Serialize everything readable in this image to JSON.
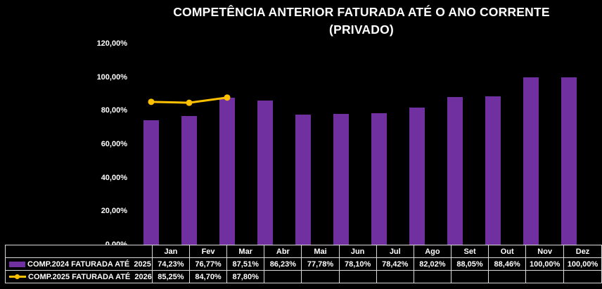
{
  "title": {
    "line1": "COMPETÊNCIA ANTERIOR FATURADA ATÉ O ANO CORRENTE",
    "line2": "(PRIVADO)"
  },
  "colors": {
    "background": "#000000",
    "bar": "#7030A0",
    "line": "#FFC000",
    "text": "#FFFFFF",
    "table_border": "#D9D9D9"
  },
  "chart_data": {
    "type": "bar",
    "categories": [
      "Jan",
      "Fev",
      "Mar",
      "Abr",
      "Mai",
      "Jun",
      "Jul",
      "Ago",
      "Set",
      "Out",
      "Nov",
      "Dez"
    ],
    "series": [
      {
        "name": "COMP.2024 FATURADA ATÉ  2025",
        "chart_type": "bar",
        "color": "#7030A0",
        "values": [
          74.23,
          76.77,
          87.51,
          86.23,
          77.78,
          78.1,
          78.42,
          82.02,
          88.05,
          88.46,
          100.0,
          100.0
        ],
        "labels": [
          "74,23%",
          "76,77%",
          "87,51%",
          "86,23%",
          "77,78%",
          "78,10%",
          "78,42%",
          "82,02%",
          "88,05%",
          "88,46%",
          "100,00%",
          "100,00%"
        ]
      },
      {
        "name": "COMP.2025 FATURADA ATÉ  2026",
        "chart_type": "line",
        "color": "#FFC000",
        "values": [
          85.25,
          84.7,
          87.8,
          null,
          null,
          null,
          null,
          null,
          null,
          null,
          null,
          null
        ],
        "labels": [
          "85,25%",
          "84,70%",
          "87,80%",
          "",
          "",
          "",
          "",
          "",
          "",
          "",
          "",
          ""
        ]
      }
    ],
    "xlabel": "",
    "ylabel": "",
    "ylim": [
      0,
      120
    ],
    "yticks": [
      "0,00%",
      "20,00%",
      "40,00%",
      "60,00%",
      "80,00%",
      "100,00%",
      "120,00%"
    ],
    "grid": false,
    "legend_position": "table-left"
  }
}
